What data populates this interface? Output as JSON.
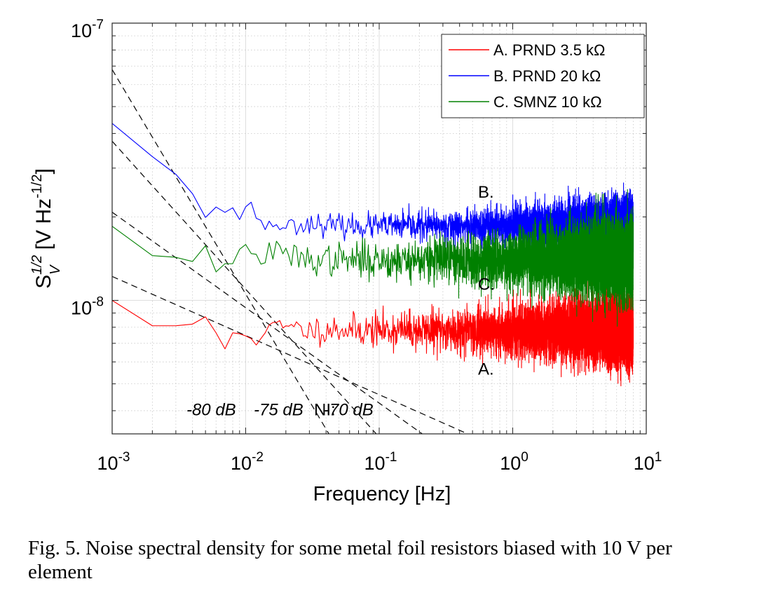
{
  "caption": "Fig. 5.  Noise spectral density for some metal foil resistors biased with 10 V per element",
  "chart_data": {
    "type": "line",
    "x_scale": "log",
    "y_scale": "log",
    "xlim": [
      0.001,
      10
    ],
    "ylim": [
      3.3e-09,
      1e-07
    ],
    "grid": true,
    "xlabel": "Frequency [Hz]",
    "ylabel": {
      "base": "S",
      "sub": "V",
      "sup": "1/2",
      "unit_prefix": " [V Hz",
      "unit_exp": "-1/2",
      "unit_suffix": "]"
    },
    "x_ticks": [
      {
        "value": 0.001,
        "base": "10",
        "exp": "-3"
      },
      {
        "value": 0.01,
        "base": "10",
        "exp": "-2"
      },
      {
        "value": 0.1,
        "base": "10",
        "exp": "-1"
      },
      {
        "value": 1,
        "base": "10",
        "exp": "0"
      },
      {
        "value": 10,
        "base": "10",
        "exp": "1"
      }
    ],
    "y_ticks": [
      {
        "value": 1e-08,
        "base": "10",
        "exp": "-8"
      },
      {
        "value": 1e-07,
        "base": "10",
        "exp": "-7"
      }
    ],
    "legend_position": "top-right",
    "series": [
      {
        "name": "A. PRND 3.5 kΩ",
        "color": "#ff0000",
        "x": [
          0.001,
          0.002,
          0.003,
          0.004,
          0.005,
          0.006,
          0.007,
          0.008,
          0.01,
          0.012,
          0.015,
          0.02,
          0.03,
          0.05,
          0.07,
          0.1
        ],
        "y": [
          1e-08,
          8.1e-09,
          8.1e-09,
          8.3e-09,
          8.3e-09,
          7.5e-09,
          6.8e-09,
          7.5e-09,
          7.7e-09,
          7.3e-09,
          7.9e-09,
          8e-09,
          7.8e-09,
          7.9e-09,
          7.8e-09,
          7.8e-09
        ],
        "trend_hi": 0.1,
        "noise": [
          0.07,
          0.26
        ],
        "seed": 11
      },
      {
        "name": "B. PRND 20 kΩ",
        "color": "#0000ff",
        "x": [
          0.001,
          0.002,
          0.003,
          0.004,
          0.005,
          0.006,
          0.007,
          0.009,
          0.011,
          0.013,
          0.015,
          0.02,
          0.03,
          0.05,
          0.1
        ],
        "y": [
          4.35e-08,
          3.3e-08,
          2.85e-08,
          2.5e-08,
          2.05e-08,
          2.15e-08,
          2.1e-08,
          2.05e-08,
          2.25e-08,
          1.85e-08,
          1.9e-08,
          1.85e-08,
          1.9e-08,
          1.85e-08,
          1.85e-08
        ],
        "trend_hi": 0.1,
        "noise": [
          0.05,
          0.2
        ],
        "seed": 23
      },
      {
        "name": "C. SMNZ 10 kΩ",
        "color": "#008000",
        "x": [
          0.001,
          0.002,
          0.003,
          0.004,
          0.005,
          0.006,
          0.007,
          0.008,
          0.01,
          0.012,
          0.015,
          0.02,
          0.03,
          0.05,
          0.1
        ],
        "y": [
          1.85e-08,
          1.45e-08,
          1.43e-08,
          1.45e-08,
          1.45e-08,
          1.3e-08,
          1.45e-08,
          1.38e-08,
          1.55e-08,
          1.4e-08,
          1.5e-08,
          1.45e-08,
          1.4e-08,
          1.4e-08,
          1.4e-08
        ],
        "trend_hi": 0.1,
        "noise": [
          0.08,
          0.28
        ],
        "seed": 37
      }
    ],
    "reference_lines": [
      {
        "x": [
          0.001,
          0.042
        ],
        "y": [
          6.8e-08,
          3.3e-09
        ],
        "style": "dashed"
      },
      {
        "x": [
          0.001,
          0.095
        ],
        "y": [
          3.75e-08,
          3.3e-09
        ],
        "style": "dashed"
      },
      {
        "x": [
          0.001,
          0.21
        ],
        "y": [
          2.08e-08,
          3.3e-09
        ],
        "style": "dashed"
      },
      {
        "x": [
          0.001,
          0.46
        ],
        "y": [
          1.22e-08,
          3.3e-09
        ],
        "style": "dashed"
      }
    ],
    "annotations": [
      {
        "text": "B.",
        "x": 0.55,
        "y": 2.35e-08,
        "italic": false
      },
      {
        "text": "C.",
        "x": 0.55,
        "y": 1.09e-08,
        "italic": false
      },
      {
        "text": "A.",
        "x": 0.55,
        "y": 5.4e-09,
        "italic": false
      },
      {
        "text": "NI:",
        "x": 0.0325,
        "y": 3.85e-09,
        "italic": false
      },
      {
        "text": "-80 dB",
        "x": 0.0036,
        "y": 3.85e-09,
        "italic": true
      },
      {
        "text": "-75 dB",
        "x": 0.0115,
        "y": 3.85e-09,
        "italic": true
      },
      {
        "text": "-70 dB",
        "x": 0.0385,
        "y": 3.85e-09,
        "italic": true
      }
    ]
  }
}
